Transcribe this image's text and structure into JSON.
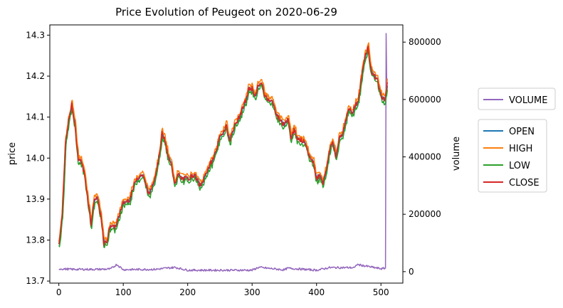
{
  "chart_data": {
    "type": "line",
    "title": "Price Evolution of Peugeot on 2020-06-29",
    "xlabel": "",
    "ylabel": "price",
    "y2label": "volume",
    "xlim": [
      -14,
      534
    ],
    "ylim": [
      13.695,
      14.325
    ],
    "y2lim": [
      -40000,
      860000
    ],
    "xticks": [
      0,
      100,
      200,
      300,
      400,
      500
    ],
    "yticks": [
      13.7,
      13.8,
      13.9,
      14.0,
      14.1,
      14.2,
      14.3
    ],
    "y2ticks": [
      0,
      200000,
      400000,
      600000,
      800000
    ],
    "ytick_labels": [
      "13.7",
      "13.8",
      "13.9",
      "14.0",
      "14.1",
      "14.2",
      "14.3"
    ],
    "y2tick_labels": [
      "0",
      "200000",
      "400000",
      "600000",
      "800000"
    ],
    "xtick_labels": [
      "0",
      "100",
      "200",
      "300",
      "400",
      "500"
    ],
    "legend_volume": "VOLUME",
    "legend_price": [
      "OPEN",
      "HIGH",
      "LOW",
      "CLOSE"
    ],
    "legend_placement": "outside-right",
    "colors": {
      "OPEN": "#1f77b4",
      "HIGH": "#ff7f0e",
      "LOW": "#2ca02c",
      "CLOSE": "#d62728",
      "VOLUME": "#9467bd"
    },
    "price_path": {
      "x": [
        0,
        5,
        10,
        15,
        20,
        25,
        30,
        35,
        40,
        45,
        50,
        55,
        60,
        65,
        70,
        75,
        80,
        85,
        90,
        95,
        100,
        110,
        120,
        130,
        140,
        150,
        155,
        160,
        165,
        170,
        175,
        180,
        185,
        190,
        200,
        210,
        220,
        230,
        240,
        250,
        260,
        265,
        270,
        280,
        290,
        295,
        300,
        305,
        310,
        315,
        320,
        330,
        340,
        350,
        355,
        360,
        365,
        370,
        380,
        390,
        395,
        400,
        405,
        410,
        415,
        420,
        425,
        430,
        435,
        440,
        445,
        450,
        455,
        460,
        465,
        470,
        475,
        480,
        485,
        490,
        495,
        500,
        505,
        510
      ],
      "close": [
        13.79,
        13.86,
        14.03,
        14.09,
        14.13,
        14.08,
        14.0,
        13.99,
        13.96,
        13.9,
        13.84,
        13.9,
        13.9,
        13.86,
        13.79,
        13.8,
        13.84,
        13.83,
        13.84,
        13.87,
        13.89,
        13.9,
        13.95,
        13.96,
        13.91,
        13.96,
        14.0,
        14.06,
        14.04,
        14.0,
        13.98,
        13.94,
        13.96,
        13.95,
        13.95,
        13.96,
        13.93,
        13.97,
        14.0,
        14.05,
        14.08,
        14.04,
        14.07,
        14.1,
        14.14,
        14.17,
        14.17,
        14.15,
        14.18,
        14.18,
        14.15,
        14.14,
        14.1,
        14.08,
        14.1,
        14.05,
        14.07,
        14.05,
        14.04,
        14.0,
        13.99,
        13.95,
        13.96,
        13.94,
        13.97,
        14.02,
        14.04,
        14.0,
        14.05,
        14.06,
        14.09,
        14.12,
        14.11,
        14.13,
        14.14,
        14.2,
        14.25,
        14.27,
        14.21,
        14.2,
        14.19,
        14.15,
        14.14,
        14.18
      ]
    },
    "volume_path": {
      "x": [
        0,
        20,
        40,
        60,
        80,
        90,
        100,
        150,
        180,
        200,
        250,
        300,
        310,
        350,
        355,
        400,
        420,
        460,
        462,
        500,
        507,
        508,
        509,
        510
      ],
      "volume": [
        10000,
        8000,
        8000,
        8000,
        9000,
        25000,
        7000,
        8000,
        15000,
        5000,
        5000,
        5000,
        15000,
        6000,
        12000,
        5000,
        14000,
        14000,
        25000,
        10000,
        12000,
        830000,
        640000,
        650000
      ]
    }
  }
}
